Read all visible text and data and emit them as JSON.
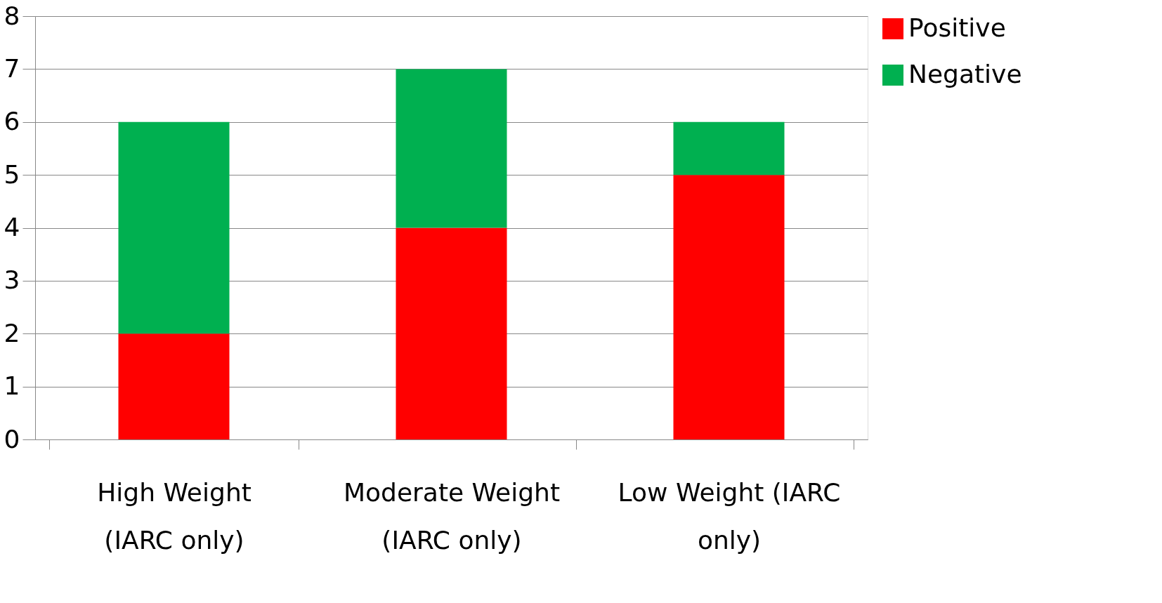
{
  "chart_data": {
    "type": "bar",
    "stacked": true,
    "categories": [
      "High Weight (IARC only)",
      "Moderate Weight (IARC only)",
      "Low Weight (IARC only)"
    ],
    "series": [
      {
        "name": "Positive",
        "color": "#ff0000",
        "values": [
          2,
          4,
          5
        ]
      },
      {
        "name": "Negative",
        "color": "#00b050",
        "values": [
          4,
          3,
          1
        ]
      }
    ],
    "ylim": [
      0,
      8
    ],
    "yticks": [
      0,
      1,
      2,
      3,
      4,
      5,
      6,
      7,
      8
    ],
    "grid": "y",
    "legend": "right"
  }
}
